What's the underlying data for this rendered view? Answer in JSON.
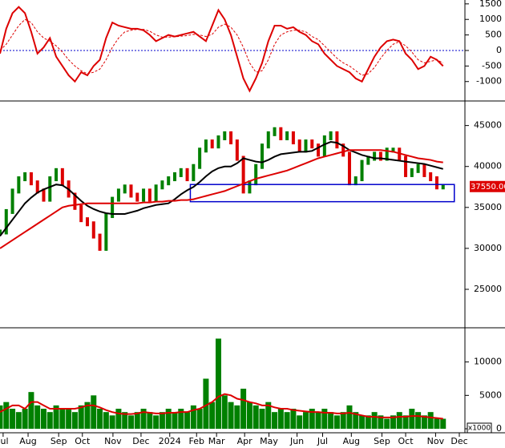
{
  "chart_data": [
    {
      "type": "line",
      "xlim": [
        0,
        74.5
      ],
      "ylim": [
        -1600,
        1625
      ],
      "yticks": [
        1500,
        1000,
        500,
        0,
        -500,
        -1000
      ],
      "reference_line": 0,
      "reference_color": "#0000cc",
      "series": [
        {
          "color": "#dd0000",
          "style": "solid",
          "values": [
            -100,
            700,
            1200,
            1400,
            1200,
            600,
            -100,
            100,
            400,
            -200,
            -500,
            -800,
            -1000,
            -700,
            -800,
            -500,
            -300,
            400,
            900,
            800,
            750,
            700,
            700,
            650,
            500,
            300,
            400,
            500,
            450,
            500,
            550,
            600,
            450,
            300,
            800,
            1300,
            1000,
            500,
            -200,
            -900,
            -1300,
            -900,
            -400,
            300,
            800,
            800,
            700,
            750,
            600,
            500,
            300,
            200,
            -100,
            -300,
            -500,
            -600,
            -700,
            -900,
            -1000,
            -600,
            -200,
            100,
            300,
            350,
            300,
            -100,
            -300,
            -600,
            -500,
            -200,
            -300,
            -500
          ]
        },
        {
          "color": "#dd0000",
          "style": "dashed",
          "values": [
            0,
            200,
            500,
            800,
            1000,
            900,
            600,
            400,
            300,
            150,
            -50,
            -300,
            -500,
            -650,
            -750,
            -700,
            -600,
            -300,
            100,
            400,
            600,
            650,
            680,
            680,
            620,
            500,
            430,
            430,
            440,
            460,
            480,
            520,
            500,
            450,
            520,
            750,
            850,
            750,
            500,
            100,
            -400,
            -700,
            -650,
            -300,
            200,
            500,
            600,
            650,
            650,
            600,
            450,
            350,
            150,
            -50,
            -250,
            -400,
            -500,
            -650,
            -800,
            -750,
            -550,
            -250,
            0,
            200,
            280,
            150,
            -50,
            -300,
            -400,
            -350,
            -300,
            -400
          ]
        }
      ]
    },
    {
      "type": "candlestick",
      "xlim": [
        0,
        74.5
      ],
      "ylim": [
        20400,
        47900
      ],
      "yticks": [
        45000,
        40000,
        35000,
        30000,
        25000
      ],
      "up_color": "#008000",
      "down_color": "#dd0000",
      "values": [
        32000,
        34500,
        37000,
        38500,
        39000,
        38000,
        37000,
        36000,
        38500,
        39500,
        38000,
        36500,
        35000,
        33500,
        33000,
        31500,
        30000,
        34000,
        36000,
        37000,
        37500,
        36500,
        36000,
        37000,
        36000,
        37500,
        38000,
        38500,
        39000,
        39500,
        38500,
        40000,
        42000,
        43000,
        42500,
        43500,
        44000,
        43000,
        41000,
        37000,
        38000,
        40000,
        42500,
        44000,
        44500,
        43500,
        44000,
        43000,
        42000,
        43000,
        42500,
        41500,
        43500,
        44000,
        42500,
        41500,
        38000,
        38500,
        40500,
        41000,
        41500,
        41000,
        42000,
        42000,
        41000,
        39000,
        39500,
        40000,
        39000,
        38500,
        37500,
        37550
      ],
      "last_label": "37550.00",
      "last_color": "#dd0000",
      "zone": {
        "x": [
          30.5,
          72.8
        ],
        "y": [
          35700,
          37800
        ],
        "color": "#0000cc"
      },
      "series": [
        {
          "color": "#000000",
          "values": [
            31500,
            32500,
            33500,
            34500,
            35500,
            36200,
            36800,
            37200,
            37500,
            37800,
            37700,
            37200,
            36500,
            35800,
            35200,
            34800,
            34500,
            34300,
            34200,
            34200,
            34200,
            34400,
            34600,
            34900,
            35100,
            35300,
            35400,
            35500,
            36000,
            36600,
            37100,
            37500,
            38100,
            38800,
            39400,
            39800,
            40000,
            40000,
            40400,
            41000,
            40800,
            40600,
            40500,
            40800,
            41200,
            41500,
            41600,
            41700,
            41800,
            41800,
            41900,
            42300,
            42700,
            43000,
            42900,
            42500,
            42000,
            41700,
            41400,
            41200,
            41000,
            41000,
            40900,
            40800,
            40700,
            40600,
            40500,
            40400,
            40300,
            40100,
            39900,
            39700
          ]
        },
        {
          "color": "#dd0000",
          "values": [
            30000,
            30500,
            31000,
            31500,
            32000,
            32500,
            33000,
            33500,
            34000,
            34500,
            35000,
            35200,
            35300,
            35400,
            35500,
            35500,
            35500,
            35500,
            35500,
            35500,
            35500,
            35500,
            35500,
            35600,
            35600,
            35700,
            35700,
            35800,
            35800,
            35900,
            35900,
            36000,
            36200,
            36400,
            36600,
            36800,
            37000,
            37300,
            37600,
            37900,
            38200,
            38500,
            38700,
            38900,
            39100,
            39300,
            39500,
            39800,
            40100,
            40400,
            40700,
            41000,
            41200,
            41400,
            41600,
            41800,
            42000,
            42000,
            42000,
            42000,
            42000,
            42000,
            41900,
            41800,
            41600,
            41400,
            41200,
            41000,
            40900,
            40800,
            40600,
            40500
          ]
        }
      ]
    },
    {
      "type": "bar",
      "xlim": [
        0,
        74.5
      ],
      "ylim": [
        0,
        15000
      ],
      "color": "#008000",
      "yticks": [
        10000,
        5000,
        0
      ],
      "unit_label": "x1000",
      "values": [
        3500,
        4000,
        3000,
        2500,
        3000,
        5500,
        3500,
        3000,
        2500,
        3500,
        3000,
        3000,
        2500,
        3500,
        4000,
        5000,
        3000,
        2500,
        2000,
        3000,
        2500,
        2000,
        2500,
        3000,
        2500,
        2000,
        2500,
        3000,
        2500,
        3000,
        2500,
        3500,
        3000,
        7500,
        4000,
        13500,
        5000,
        4000,
        3500,
        6000,
        4000,
        3500,
        3000,
        4000,
        2500,
        3000,
        2500,
        3000,
        2000,
        2500,
        3000,
        2500,
        3000,
        2500,
        2000,
        2500,
        3500,
        2500,
        2000,
        2000,
        2500,
        2000,
        1500,
        2000,
        2500,
        2000,
        3000,
        2500,
        2000,
        2500,
        1500,
        1500
      ],
      "series": [
        {
          "color": "#dd0000",
          "values": [
            2500,
            3000,
            3500,
            3500,
            3000,
            4000,
            4000,
            3500,
            3000,
            3000,
            3000,
            3000,
            3000,
            3200,
            3500,
            3500,
            3200,
            2800,
            2500,
            2300,
            2200,
            2200,
            2300,
            2500,
            2400,
            2300,
            2300,
            2400,
            2400,
            2500,
            2500,
            2800,
            3000,
            3500,
            4000,
            4800,
            5200,
            5000,
            4500,
            4300,
            4000,
            3800,
            3500,
            3500,
            3200,
            3000,
            3000,
            2800,
            2700,
            2600,
            2500,
            2500,
            2400,
            2400,
            2300,
            2300,
            2400,
            2200,
            2000,
            1800,
            1800,
            1700,
            1700,
            1700,
            1800,
            1800,
            1900,
            1900,
            1800,
            1700,
            1600,
            1500
          ]
        }
      ],
      "xticks": [
        {
          "value": 0.5,
          "label": "Jul"
        },
        {
          "value": 4.5,
          "label": "Aug"
        },
        {
          "value": 9.4,
          "label": "Sep"
        },
        {
          "value": 13.2,
          "label": "Oct"
        },
        {
          "value": 18.1,
          "label": "Nov"
        },
        {
          "value": 22.6,
          "label": "Dec"
        },
        {
          "value": 27.2,
          "label": "2024"
        },
        {
          "value": 31.5,
          "label": "Feb"
        },
        {
          "value": 34.7,
          "label": "Mar"
        },
        {
          "value": 39.2,
          "label": "Apr"
        },
        {
          "value": 43.1,
          "label": "May"
        },
        {
          "value": 47.6,
          "label": "Jun"
        },
        {
          "value": 51.7,
          "label": "Jul"
        },
        {
          "value": 56.3,
          "label": "Aug"
        },
        {
          "value": 61.2,
          "label": "Sep"
        },
        {
          "value": 65.0,
          "label": "Oct"
        },
        {
          "value": 69.8,
          "label": "Nov"
        },
        {
          "value": 73.6,
          "label": "Dec"
        }
      ]
    }
  ]
}
